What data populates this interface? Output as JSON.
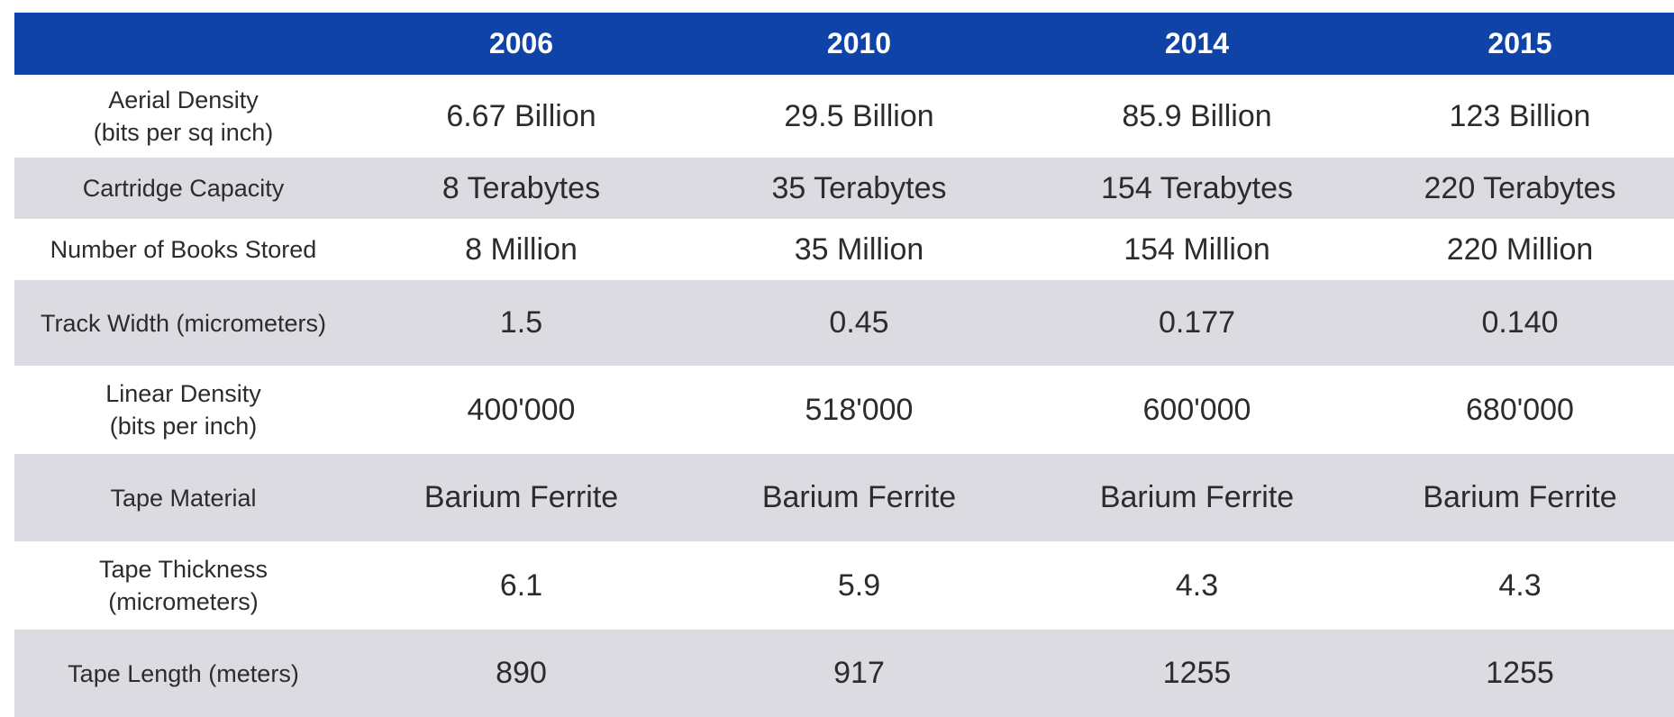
{
  "header": {
    "corner": "",
    "years": [
      "2006",
      "2010",
      "2014",
      "2015"
    ]
  },
  "rows": [
    {
      "label": [
        "Aerial Density",
        "(bits per sq inch)"
      ],
      "values": [
        "6.67 Billion",
        "29.5 Billion",
        "85.9 Billion",
        "123 Billion"
      ]
    },
    {
      "label": [
        "Cartridge Capacity"
      ],
      "values": [
        "8 Terabytes",
        "35 Terabytes",
        "154 Terabytes",
        "220 Terabytes"
      ]
    },
    {
      "label": [
        "Number of Books Stored"
      ],
      "values": [
        "8 Million",
        "35 Million",
        "154 Million",
        "220 Million"
      ]
    },
    {
      "label": [
        "Track Width (micrometers)"
      ],
      "values": [
        "1.5",
        "0.45",
        "0.177",
        "0.140"
      ]
    },
    {
      "label": [
        "Linear Density",
        "(bits per inch)"
      ],
      "values": [
        "400'000",
        "518'000",
        "600'000",
        "680'000"
      ]
    },
    {
      "label": [
        "Tape Material"
      ],
      "values": [
        "Barium Ferrite",
        "Barium Ferrite",
        "Barium Ferrite",
        "Barium Ferrite"
      ]
    },
    {
      "label": [
        "Tape Thickness",
        "(micrometers)"
      ],
      "values": [
        "6.1",
        "5.9",
        "4.3",
        "4.3"
      ]
    },
    {
      "label": [
        "Tape Length (meters)"
      ],
      "values": [
        "890",
        "917",
        "1255",
        "1255"
      ]
    }
  ],
  "colors": {
    "header_bg": "#0f43a8",
    "header_text": "#ffffff",
    "stripe": "#dcdbe1",
    "body_text": "#2c2c2c"
  }
}
